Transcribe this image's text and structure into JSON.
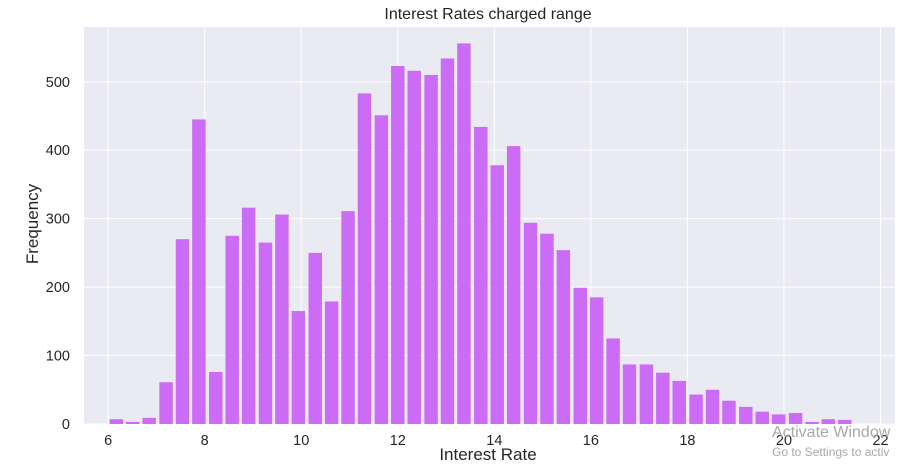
{
  "chart_data": {
    "type": "bar",
    "title": "Interest Rates charged range",
    "xlabel": "Interest Rate",
    "ylabel": "Frequency",
    "xlim": [
      5.5,
      22.3
    ],
    "ylim": [
      0,
      580
    ],
    "xticks": [
      6,
      8,
      10,
      12,
      14,
      16,
      18,
      20,
      22
    ],
    "yticks": [
      0,
      100,
      200,
      300,
      400,
      500
    ],
    "grid": true,
    "bar_color": "#cc6bf5",
    "background_color": "#eaeaf2",
    "bins_x": [
      6.17,
      6.51,
      6.85,
      7.2,
      7.54,
      7.88,
      8.23,
      8.57,
      8.91,
      9.26,
      9.6,
      9.94,
      10.29,
      10.63,
      10.97,
      11.31,
      11.66,
      12.0,
      12.34,
      12.69,
      13.03,
      13.37,
      13.72,
      14.06,
      14.4,
      14.75,
      15.09,
      15.43,
      15.78,
      16.12,
      16.46,
      16.8,
      17.15,
      17.49,
      17.83,
      18.18,
      18.52,
      18.86,
      19.21,
      19.55,
      19.89,
      20.24,
      20.58,
      20.92,
      21.26
    ],
    "values": [
      7,
      3,
      9,
      61,
      270,
      445,
      76,
      275,
      316,
      265,
      306,
      165,
      250,
      179,
      311,
      483,
      451,
      523,
      516,
      510,
      534,
      556,
      434,
      378,
      406,
      294,
      278,
      254,
      199,
      185,
      125,
      87,
      87,
      75,
      63,
      43,
      50,
      34,
      25,
      18,
      14,
      16,
      3,
      7,
      6
    ]
  },
  "watermark": {
    "line1": "Activate Window",
    "line2": "Go to Settings to activ"
  }
}
